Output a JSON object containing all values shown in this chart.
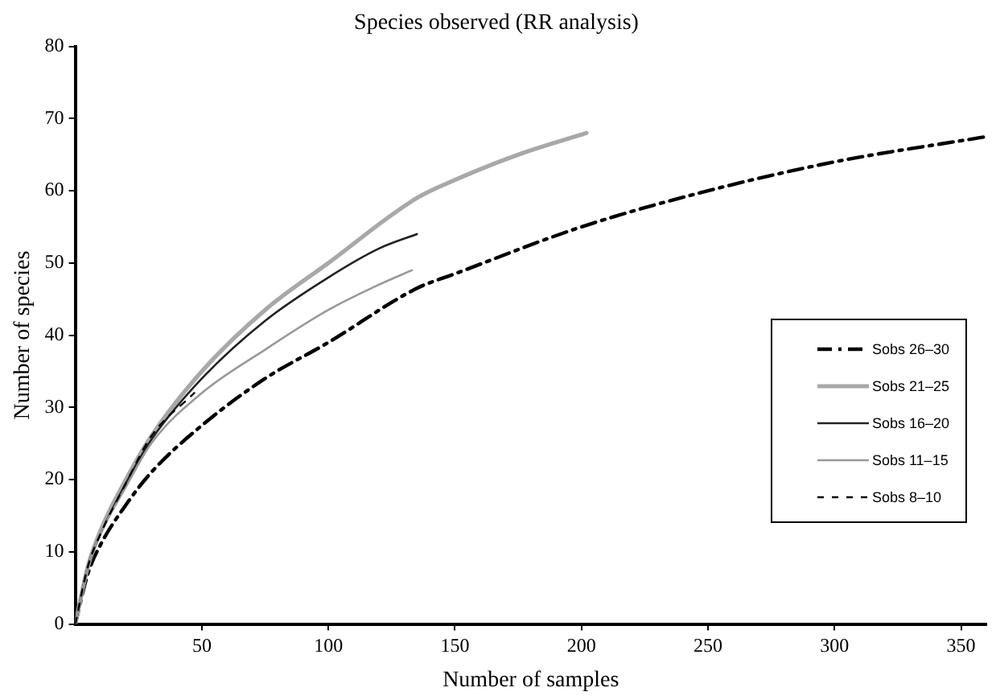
{
  "chart_data": {
    "type": "line",
    "title": "Species observed (RR analysis)",
    "xlabel": "Number of samples",
    "ylabel": "Number of species",
    "xlim": [
      0,
      360
    ],
    "xticks": [
      50,
      100,
      150,
      200,
      250,
      300,
      350
    ],
    "ylim": [
      0,
      80
    ],
    "yticks": [
      0,
      10,
      20,
      30,
      40,
      50,
      60,
      70,
      80
    ],
    "grid": false,
    "legend": "right",
    "marker": "none",
    "series": [
      {
        "name": "Sobs 26–30",
        "color": "#000000",
        "line_style": "dashed",
        "x": [
          0,
          5,
          10,
          20,
          30,
          50,
          75,
          100,
          135,
          150,
          200,
          250,
          300,
          360
        ],
        "values": [
          0,
          7,
          11,
          16.5,
          21,
          27.5,
          34,
          39,
          46.5,
          48.5,
          55,
          60,
          64,
          67.5
        ]
      },
      {
        "name": "Sobs 21–25",
        "color": "#a8a8a8",
        "line_style": "solid",
        "x": [
          0,
          5,
          10,
          20,
          30,
          50,
          75,
          100,
          135,
          150,
          175,
          202
        ],
        "values": [
          0,
          8,
          13,
          20,
          26,
          35,
          43.5,
          50,
          59,
          61.5,
          65,
          68
        ]
      },
      {
        "name": "Sobs 16–20",
        "color": "#222222",
        "line_style": "solid",
        "x": [
          0,
          5,
          10,
          20,
          30,
          50,
          75,
          100,
          120,
          135
        ],
        "values": [
          0,
          8,
          12.5,
          19.5,
          25.5,
          34,
          42,
          48,
          52,
          54
        ]
      },
      {
        "name": "Sobs 11–15",
        "color": "#999999",
        "line_style": "solid",
        "x": [
          0,
          5,
          10,
          20,
          30,
          50,
          75,
          100,
          120,
          133
        ],
        "values": [
          0,
          8,
          12.5,
          19,
          25,
          32,
          38,
          43.5,
          47,
          49
        ]
      },
      {
        "name": "Sobs 8–10",
        "color": "#000000",
        "line_style": "dotted",
        "x": [
          0,
          5,
          10,
          20,
          30,
          47
        ],
        "values": [
          0,
          8,
          12.5,
          19.5,
          26,
          32
        ]
      }
    ]
  }
}
